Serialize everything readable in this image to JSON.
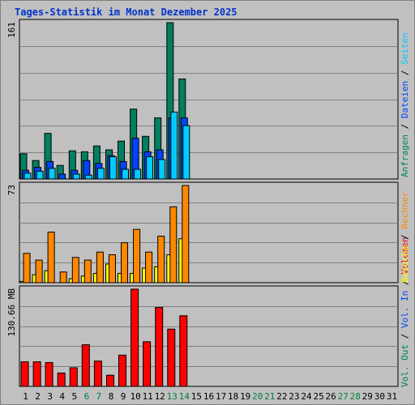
{
  "title": "Tages-Statistik im Monat Dezember 2025",
  "colors": {
    "background": "#c0c0c0",
    "title": "#0033cc",
    "grid": "#808080",
    "anfragen": "#008060",
    "dateien": "#0044ff",
    "seiten": "#00ccff",
    "besuche": "#ffff00",
    "rechner": "#ff8800",
    "volumen": "#ff0000",
    "weekday_label": "#000000",
    "weekend_label": "#008040",
    "separator": "#000000"
  },
  "panels": {
    "top": {
      "scale_label": "161",
      "legend": [
        {
          "label": "Anfragen",
          "color": "#008060"
        },
        {
          "label": "Dateien",
          "color": "#0044ff"
        },
        {
          "label": "Seiten",
          "color": "#00ccff"
        }
      ]
    },
    "middle": {
      "scale_label": "73",
      "legend": [
        {
          "label": "Besuche",
          "color": "#ffff00"
        },
        {
          "label": "Rechner",
          "color": "#ff8800"
        }
      ]
    },
    "bottom": {
      "scale_label": "130.66 MB",
      "legend": [
        {
          "label": "Vol. Out",
          "color": "#008060"
        },
        {
          "label": "Vol. In",
          "color": "#0044ff"
        },
        {
          "label": "Volumen",
          "color": "#ff0000"
        }
      ]
    }
  },
  "chart_data": {
    "type": "bar",
    "title": "Tages-Statistik im Monat Dezember 2025",
    "categories": [
      "1",
      "2",
      "3",
      "4",
      "5",
      "6",
      "7",
      "8",
      "9",
      "10",
      "11",
      "12",
      "13",
      "14",
      "15",
      "16",
      "17",
      "18",
      "19",
      "20",
      "21",
      "22",
      "23",
      "24",
      "25",
      "26",
      "27",
      "28",
      "29",
      "30",
      "31"
    ],
    "weekend_days": [
      "6",
      "7",
      "13",
      "14",
      "20",
      "21",
      "27",
      "28"
    ],
    "panels": [
      {
        "name": "top",
        "ymax": 161,
        "series": [
          {
            "name": "Anfragen",
            "values": [
              26,
              19,
              47,
              14,
              29,
              28,
              34,
              30,
              39,
              72,
              44,
              63,
              161,
              103
            ]
          },
          {
            "name": "Dateien",
            "values": [
              9,
              12,
              18,
              5,
              9,
              19,
              16,
              24,
              18,
              42,
              28,
              30,
              63,
              63
            ]
          },
          {
            "name": "Seiten",
            "values": [
              6,
              8,
              11,
              0,
              5,
              4,
              11,
              23,
              10,
              10,
              23,
              20,
              69,
              55
            ]
          }
        ]
      },
      {
        "name": "middle",
        "ymax": 73,
        "series": [
          {
            "name": "Besuche",
            "values": [
              1,
              6,
              9,
              0,
              3,
              5,
              7,
              14,
              7,
              7,
              11,
              12,
              21,
              33
            ]
          },
          {
            "name": "Rechner",
            "values": [
              22,
              17,
              38,
              8,
              19,
              17,
              23,
              21,
              30,
              40,
              23,
              35,
              57,
              73
            ]
          }
        ]
      },
      {
        "name": "bottom",
        "ymax": 130.66,
        "unit": "MB",
        "series": [
          {
            "name": "Volumen",
            "values": [
              33,
              33,
              32,
              18,
              25,
              56,
              34,
              15,
              42,
              130.66,
              60,
              106,
              77,
              95
            ]
          }
        ]
      }
    ]
  }
}
